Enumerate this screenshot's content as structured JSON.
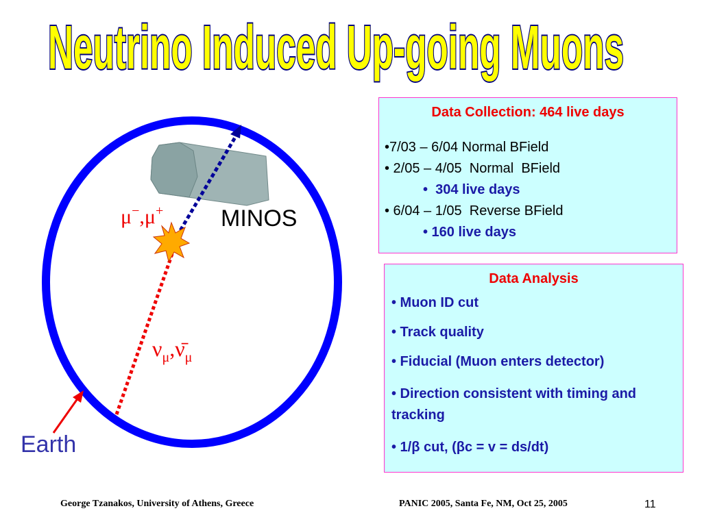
{
  "title": "Neutrino Induced Up-going Muons",
  "diagram": {
    "muon_label": [
      "μ",
      "−",
      ",μ",
      "+"
    ],
    "detector": "MINOS",
    "neutrino_label": [
      "ν",
      "μ",
      ",ν̄",
      "μ"
    ],
    "earth": "Earth"
  },
  "collection": {
    "title": "Data Collection: 464 live days",
    "items": [
      "•7/03 – 6/04 Normal BField",
      "• 2/05 – 4/05  Normal  BField",
      "•  304 live days",
      "• 6/04 – 1/05  Reverse BField",
      "• 160 live days"
    ]
  },
  "analysis": {
    "title": "Data Analysis",
    "items": [
      "• Muon ID cut",
      "• Track quality",
      "• Fiducial (Muon enters detector)",
      "• Direction consistent with timing and tracking",
      "• 1/β cut, (βc = v = ds/dt)"
    ]
  },
  "footer": {
    "author": "George Tzanakos, University of Athens, Greece",
    "event": "PANIC 2005, Santa Fe, NM, Oct 25, 2005",
    "page": "11"
  }
}
